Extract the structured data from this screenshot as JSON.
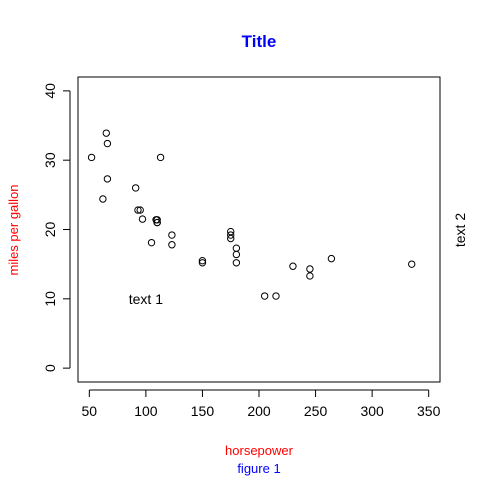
{
  "chart_data": {
    "type": "scatter",
    "title": "Title",
    "xlabel": "horsepower",
    "ylabel": "miles per gallon",
    "sub": "figure 1",
    "xlim": [
      40,
      360
    ],
    "ylim": [
      -2,
      42
    ],
    "xticks": [
      50,
      100,
      150,
      200,
      250,
      300,
      350
    ],
    "yticks": [
      0,
      10,
      20,
      30,
      40
    ],
    "grid": false,
    "colors": {
      "title": "#0000ff",
      "xlabel": "#ff0000",
      "ylabel": "#ff0000",
      "sub": "#0000ff",
      "points": "#000000"
    },
    "annotations": [
      {
        "text": "text 1",
        "x": 100,
        "y": 10
      }
    ],
    "margin_text": [
      {
        "text": "text 2",
        "side": "right"
      }
    ],
    "points": [
      {
        "x": 110,
        "y": 21.0
      },
      {
        "x": 110,
        "y": 21.0
      },
      {
        "x": 93,
        "y": 22.8
      },
      {
        "x": 110,
        "y": 21.4
      },
      {
        "x": 175,
        "y": 18.7
      },
      {
        "x": 105,
        "y": 18.1
      },
      {
        "x": 245,
        "y": 14.3
      },
      {
        "x": 62,
        "y": 24.4
      },
      {
        "x": 95,
        "y": 22.8
      },
      {
        "x": 123,
        "y": 19.2
      },
      {
        "x": 123,
        "y": 17.8
      },
      {
        "x": 180,
        "y": 16.4
      },
      {
        "x": 180,
        "y": 17.3
      },
      {
        "x": 180,
        "y": 15.2
      },
      {
        "x": 205,
        "y": 10.4
      },
      {
        "x": 215,
        "y": 10.4
      },
      {
        "x": 230,
        "y": 14.7
      },
      {
        "x": 66,
        "y": 32.4
      },
      {
        "x": 52,
        "y": 30.4
      },
      {
        "x": 65,
        "y": 33.9
      },
      {
        "x": 97,
        "y": 21.5
      },
      {
        "x": 150,
        "y": 15.5
      },
      {
        "x": 150,
        "y": 15.2
      },
      {
        "x": 245,
        "y": 13.3
      },
      {
        "x": 175,
        "y": 19.2
      },
      {
        "x": 66,
        "y": 27.3
      },
      {
        "x": 91,
        "y": 26.0
      },
      {
        "x": 113,
        "y": 30.4
      },
      {
        "x": 264,
        "y": 15.8
      },
      {
        "x": 175,
        "y": 19.7
      },
      {
        "x": 335,
        "y": 15.0
      },
      {
        "x": 109,
        "y": 21.4
      }
    ]
  }
}
